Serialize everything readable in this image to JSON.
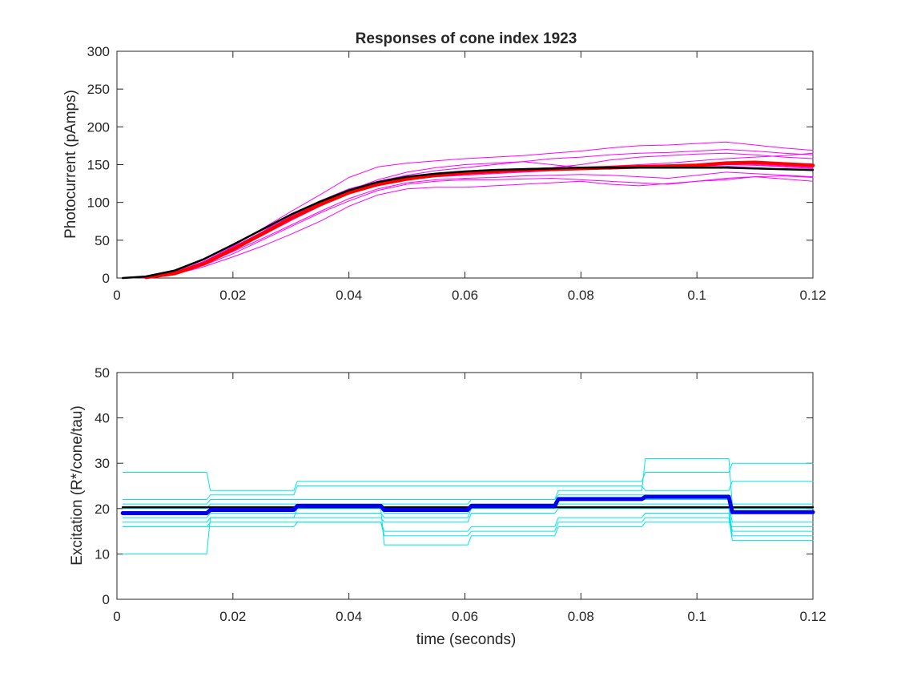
{
  "chart_data": [
    {
      "type": "line",
      "title": "Responses of cone index 1923",
      "xlabel": "",
      "ylabel": "Photocurrent (pAmps)",
      "xlim": [
        0,
        0.12
      ],
      "ylim": [
        0,
        300
      ],
      "xticks": [
        0,
        0.02,
        0.04,
        0.06,
        0.08,
        0.1,
        0.12
      ],
      "xtick_labels": [
        "0",
        "0.02",
        "0.04",
        "0.06",
        "0.08",
        "0.1",
        "0.12"
      ],
      "yticks": [
        0,
        50,
        100,
        150,
        200,
        250,
        300
      ],
      "ytick_labels": [
        "0",
        "50",
        "100",
        "150",
        "200",
        "250",
        "300"
      ],
      "grid": false,
      "x": [
        0.001,
        0.005,
        0.01,
        0.015,
        0.02,
        0.025,
        0.03,
        0.035,
        0.04,
        0.045,
        0.05,
        0.055,
        0.06,
        0.065,
        0.07,
        0.075,
        0.08,
        0.085,
        0.09,
        0.095,
        0.1,
        0.105,
        0.11,
        0.115,
        0.12
      ],
      "series": [
        {
          "color": "#ff00ff",
          "width": 1,
          "values": [
            0,
            1,
            8,
            22,
            42,
            65,
            88,
            110,
            133,
            147,
            152,
            155,
            158,
            160,
            162,
            165,
            168,
            172,
            175,
            176,
            178,
            180,
            176,
            172,
            169
          ]
        },
        {
          "color": "#ff00ff",
          "width": 1,
          "values": [
            0,
            1,
            5,
            15,
            28,
            42,
            58,
            75,
            95,
            110,
            118,
            120,
            120,
            122,
            124,
            126,
            128,
            124,
            122,
            125,
            128,
            130,
            134,
            131,
            128
          ]
        },
        {
          "color": "#ff00ff",
          "width": 1,
          "values": [
            0,
            2,
            10,
            25,
            45,
            63,
            80,
            98,
            115,
            125,
            130,
            134,
            136,
            138,
            140,
            142,
            145,
            148,
            150,
            152,
            155,
            158,
            160,
            162,
            165
          ]
        },
        {
          "color": "#ff00ff",
          "width": 1,
          "values": [
            0,
            1,
            6,
            18,
            35,
            52,
            70,
            88,
            105,
            118,
            126,
            130,
            132,
            133,
            135,
            136,
            137,
            136,
            134,
            132,
            136,
            140,
            138,
            136,
            134
          ]
        },
        {
          "color": "#ff00ff",
          "width": 1,
          "values": [
            0,
            1,
            7,
            20,
            38,
            58,
            78,
            96,
            112,
            122,
            130,
            136,
            140,
            142,
            144,
            146,
            150,
            156,
            160,
            162,
            164,
            165,
            163,
            160,
            158
          ]
        },
        {
          "color": "#ff00ff",
          "width": 1,
          "values": [
            0,
            1,
            9,
            24,
            44,
            64,
            84,
            102,
            118,
            128,
            136,
            142,
            146,
            150,
            154,
            158,
            160,
            163,
            165,
            166,
            168,
            170,
            168,
            165,
            163
          ]
        },
        {
          "color": "#ff00ff",
          "width": 1,
          "values": [
            0,
            1,
            6,
            17,
            32,
            50,
            68,
            86,
            102,
            116,
            124,
            128,
            130,
            130,
            131,
            132,
            130,
            128,
            126,
            124,
            128,
            132,
            134,
            135,
            133
          ]
        },
        {
          "color": "#ff00ff",
          "width": 1,
          "values": [
            0,
            1,
            8,
            21,
            40,
            60,
            80,
            99,
            116,
            130,
            140,
            146,
            150,
            152,
            154,
            150,
            146,
            144,
            146,
            148,
            150,
            152,
            150,
            148,
            146
          ]
        },
        {
          "color": "#ff00ff",
          "width": 1,
          "values": [
            0,
            1,
            7,
            19,
            37,
            56,
            76,
            95,
            112,
            124,
            132,
            136,
            138,
            140,
            142,
            143,
            144,
            145,
            146,
            147,
            148,
            148,
            146,
            144,
            142
          ]
        },
        {
          "color": "#ff00ff",
          "width": 1,
          "values": [
            0,
            1,
            8,
            22,
            41,
            61,
            82,
            100,
            116,
            127,
            134,
            138,
            140,
            142,
            143,
            144,
            145,
            146,
            146,
            147,
            148,
            150,
            149,
            147,
            145
          ]
        },
        {
          "color": "#ff0000",
          "width": 4.5,
          "values": [
            null,
            1,
            6,
            19,
            38,
            58,
            79,
            97,
            113,
            124,
            131,
            136,
            139,
            141,
            143,
            144,
            145,
            146,
            147,
            148,
            149,
            152,
            153,
            151,
            149
          ]
        },
        {
          "color": "#000000",
          "width": 2.5,
          "values": [
            0,
            2,
            10,
            25,
            44,
            64,
            84,
            101,
            116,
            127,
            134,
            138,
            141,
            143,
            144,
            145,
            146,
            146,
            146,
            146,
            146,
            146,
            145,
            144,
            143
          ]
        }
      ]
    },
    {
      "type": "line",
      "title": "",
      "xlabel": "time (seconds)",
      "ylabel": "Excitation (R*/cone/tau)",
      "xlim": [
        0,
        0.12
      ],
      "ylim": [
        0,
        50
      ],
      "xticks": [
        0,
        0.02,
        0.04,
        0.06,
        0.08,
        0.1,
        0.12
      ],
      "xtick_labels": [
        "0",
        "0.02",
        "0.04",
        "0.06",
        "0.08",
        "0.1",
        "0.12"
      ],
      "yticks": [
        0,
        10,
        20,
        30,
        40,
        50
      ],
      "ytick_labels": [
        "0",
        "10",
        "20",
        "30",
        "40",
        "50"
      ],
      "grid": false,
      "step_edges": [
        0.001,
        0.0155,
        0.0305,
        0.0455,
        0.0605,
        0.0755,
        0.0905,
        0.1055,
        0.12
      ],
      "series": [
        {
          "color": "#00e5e5",
          "width": 1,
          "values": [
            28,
            24,
            26,
            26,
            26,
            26,
            28,
            30
          ]
        },
        {
          "color": "#00e5e5",
          "width": 1,
          "values": [
            22,
            23,
            25,
            25,
            25,
            25,
            24,
            26
          ]
        },
        {
          "color": "#00e5e5",
          "width": 1,
          "values": [
            21,
            22,
            22,
            22,
            22,
            24,
            31,
            21
          ]
        },
        {
          "color": "#00e5e5",
          "width": 1,
          "values": [
            20,
            21,
            21,
            21,
            22,
            23,
            23,
            20
          ]
        },
        {
          "color": "#00e5e5",
          "width": 1,
          "values": [
            19,
            20,
            20,
            19,
            21,
            22,
            22,
            19
          ]
        },
        {
          "color": "#00e5e5",
          "width": 1,
          "values": [
            18,
            19,
            19,
            18,
            20,
            21,
            21,
            17
          ]
        },
        {
          "color": "#00e5e5",
          "width": 1,
          "values": [
            17,
            18,
            18,
            17,
            19,
            20,
            20,
            15
          ]
        },
        {
          "color": "#00e5e5",
          "width": 1,
          "values": [
            16,
            17,
            17,
            15,
            16,
            18,
            19,
            14
          ]
        },
        {
          "color": "#00e5e5",
          "width": 1,
          "values": [
            16,
            16,
            17,
            14,
            15,
            17,
            18,
            13
          ]
        },
        {
          "color": "#00e5e5",
          "width": 1,
          "values": [
            10,
            18,
            20,
            12,
            14,
            16,
            17,
            16
          ]
        },
        {
          "color": "#000000",
          "width": 2.5,
          "values": [
            20.3,
            20.3,
            20.3,
            20.3,
            20.3,
            20.3,
            20.3,
            20.3
          ]
        },
        {
          "color": "#0000ee",
          "width": 5,
          "values": [
            19,
            19.7,
            20.6,
            19.7,
            20.6,
            22.1,
            22.6,
            19.2
          ]
        }
      ]
    }
  ]
}
